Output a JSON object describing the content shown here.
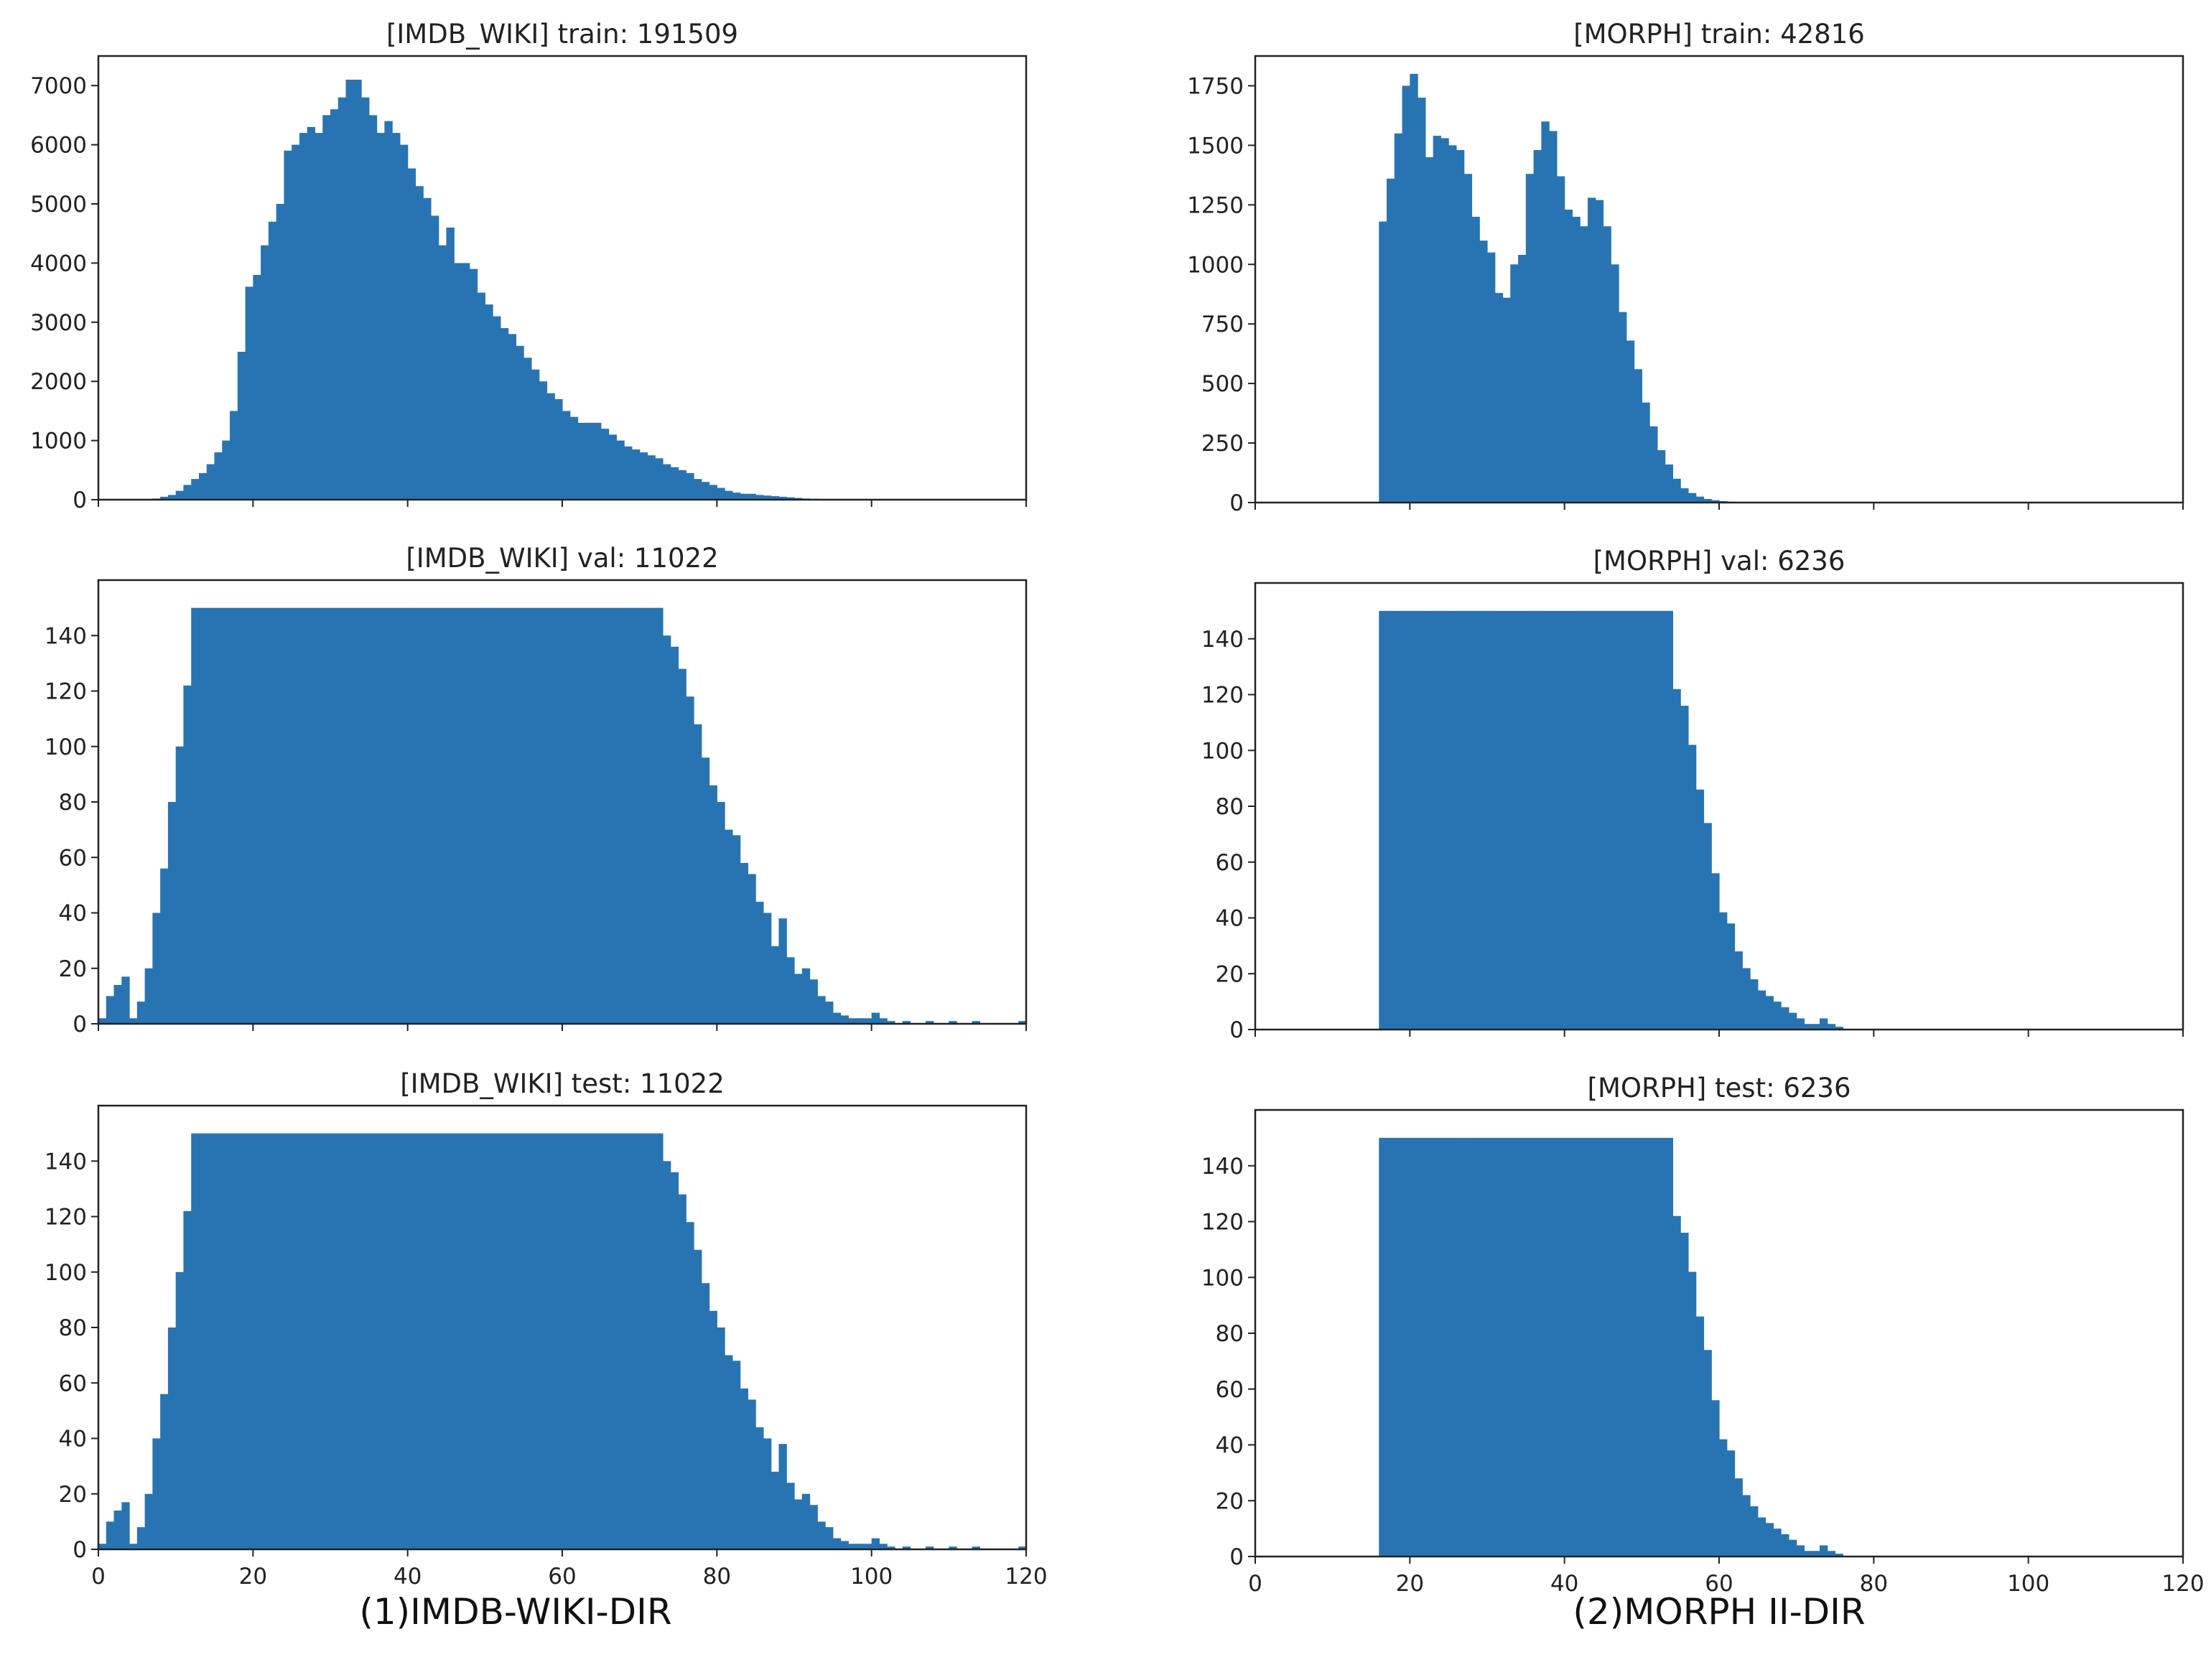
{
  "colors": {
    "bar": "#2874b2",
    "axis": "#222222",
    "background": "#ffffff",
    "text": "#222222"
  },
  "captions": [
    "(1)IMDB-WIKI-DIR",
    "(2)MORPH II-DIR"
  ],
  "chart_data": [
    {
      "type": "bar",
      "title": "[IMDB_WIKI] train: 191509",
      "xlabel": "",
      "ylabel": "",
      "xlim": [
        0,
        120
      ],
      "ylim": [
        0,
        7500
      ],
      "xticks": [
        0,
        20,
        40,
        60,
        80,
        100,
        120
      ],
      "show_xticklabels": false,
      "yticks": [
        0,
        1000,
        2000,
        3000,
        4000,
        5000,
        6000,
        7000
      ],
      "bin_start": 0,
      "bin_width": 1,
      "values": [
        0,
        0,
        0,
        0,
        0,
        0,
        10,
        20,
        50,
        80,
        150,
        250,
        350,
        450,
        600,
        800,
        1000,
        1500,
        2500,
        3600,
        3800,
        4300,
        4700,
        5000,
        5900,
        6000,
        6200,
        6300,
        6200,
        6500,
        6600,
        6800,
        7100,
        7100,
        6800,
        6500,
        6200,
        6400,
        6200,
        6000,
        5600,
        5300,
        5100,
        4800,
        4300,
        4600,
        4000,
        4000,
        3900,
        3500,
        3300,
        3100,
        2900,
        2800,
        2600,
        2400,
        2200,
        2000,
        1800,
        1700,
        1500,
        1400,
        1300,
        1300,
        1300,
        1200,
        1100,
        1000,
        900,
        850,
        800,
        750,
        700,
        600,
        550,
        500,
        450,
        350,
        300,
        250,
        200,
        150,
        120,
        100,
        100,
        80,
        70,
        60,
        50,
        40,
        30,
        20,
        15,
        10,
        8,
        5,
        4,
        3,
        2,
        1,
        0,
        0,
        0,
        0,
        0,
        0,
        0,
        0,
        0,
        0,
        0,
        0,
        0,
        0,
        0,
        0,
        0,
        0,
        0,
        0
      ]
    },
    {
      "type": "bar",
      "title": "[MORPH] train: 42816",
      "xlabel": "",
      "ylabel": "",
      "xlim": [
        0,
        120
      ],
      "ylim": [
        0,
        1875
      ],
      "xticks": [
        0,
        20,
        40,
        60,
        80,
        100,
        120
      ],
      "show_xticklabels": false,
      "yticks": [
        0,
        250,
        500,
        750,
        1000,
        1250,
        1500,
        1750
      ],
      "bin_start": 16,
      "bin_width": 1,
      "values": [
        1180,
        1360,
        1550,
        1750,
        1800,
        1700,
        1450,
        1540,
        1530,
        1500,
        1480,
        1380,
        1200,
        1100,
        1050,
        880,
        860,
        1000,
        1040,
        1380,
        1480,
        1600,
        1560,
        1370,
        1230,
        1200,
        1160,
        1280,
        1270,
        1160,
        1000,
        800,
        680,
        560,
        420,
        320,
        220,
        160,
        100,
        60,
        40,
        25,
        15,
        10,
        6,
        4,
        2,
        1
      ]
    },
    {
      "type": "bar",
      "title": "[IMDB_WIKI] val: 11022",
      "xlabel": "",
      "ylabel": "",
      "xlim": [
        0,
        120
      ],
      "ylim": [
        0,
        160
      ],
      "xticks": [
        0,
        20,
        40,
        60,
        80,
        100,
        120
      ],
      "show_xticklabels": false,
      "yticks": [
        0,
        20,
        40,
        60,
        80,
        100,
        120,
        140
      ],
      "bin_start": 0,
      "bin_width": 1,
      "values": [
        2,
        10,
        14,
        17,
        2,
        8,
        20,
        40,
        56,
        80,
        100,
        122,
        150,
        150,
        150,
        150,
        150,
        150,
        150,
        150,
        150,
        150,
        150,
        150,
        150,
        150,
        150,
        150,
        150,
        150,
        150,
        150,
        150,
        150,
        150,
        150,
        150,
        150,
        150,
        150,
        150,
        150,
        150,
        150,
        150,
        150,
        150,
        150,
        150,
        150,
        150,
        150,
        150,
        150,
        150,
        150,
        150,
        150,
        150,
        150,
        150,
        150,
        150,
        150,
        150,
        150,
        150,
        150,
        150,
        150,
        150,
        150,
        150,
        140,
        136,
        128,
        118,
        108,
        96,
        86,
        80,
        70,
        68,
        58,
        54,
        44,
        40,
        28,
        38,
        24,
        18,
        20,
        16,
        10,
        8,
        4,
        3,
        2,
        2,
        2,
        4,
        2,
        1,
        0,
        1,
        0,
        0,
        1,
        0,
        0,
        1,
        0,
        0,
        1,
        0,
        0,
        0,
        0,
        0,
        1
      ]
    },
    {
      "type": "bar",
      "title": "[MORPH] val: 6236",
      "xlabel": "",
      "ylabel": "",
      "xlim": [
        0,
        120
      ],
      "ylim": [
        0,
        160
      ],
      "xticks": [
        0,
        20,
        40,
        60,
        80,
        100,
        120
      ],
      "show_xticklabels": false,
      "yticks": [
        0,
        20,
        40,
        60,
        80,
        100,
        120,
        140
      ],
      "bin_start": 16,
      "bin_width": 1,
      "values": [
        150,
        150,
        150,
        150,
        150,
        150,
        150,
        150,
        150,
        150,
        150,
        150,
        150,
        150,
        150,
        150,
        150,
        150,
        150,
        150,
        150,
        150,
        150,
        150,
        150,
        150,
        150,
        150,
        150,
        150,
        150,
        150,
        150,
        150,
        150,
        150,
        150,
        150,
        122,
        116,
        102,
        86,
        74,
        56,
        42,
        38,
        28,
        22,
        18,
        14,
        12,
        10,
        8,
        6,
        4,
        2,
        2,
        4,
        2,
        1
      ]
    },
    {
      "type": "bar",
      "title": "[IMDB_WIKI] test: 11022",
      "xlabel": "",
      "ylabel": "",
      "xlim": [
        0,
        120
      ],
      "ylim": [
        0,
        160
      ],
      "xticks": [
        0,
        20,
        40,
        60,
        80,
        100,
        120
      ],
      "show_xticklabels": true,
      "yticks": [
        0,
        20,
        40,
        60,
        80,
        100,
        120,
        140
      ],
      "bin_start": 0,
      "bin_width": 1,
      "values": [
        2,
        10,
        14,
        17,
        2,
        8,
        20,
        40,
        56,
        80,
        100,
        122,
        150,
        150,
        150,
        150,
        150,
        150,
        150,
        150,
        150,
        150,
        150,
        150,
        150,
        150,
        150,
        150,
        150,
        150,
        150,
        150,
        150,
        150,
        150,
        150,
        150,
        150,
        150,
        150,
        150,
        150,
        150,
        150,
        150,
        150,
        150,
        150,
        150,
        150,
        150,
        150,
        150,
        150,
        150,
        150,
        150,
        150,
        150,
        150,
        150,
        150,
        150,
        150,
        150,
        150,
        150,
        150,
        150,
        150,
        150,
        150,
        150,
        140,
        136,
        128,
        118,
        108,
        96,
        86,
        80,
        70,
        68,
        58,
        54,
        44,
        40,
        28,
        38,
        24,
        18,
        20,
        16,
        10,
        8,
        4,
        3,
        2,
        2,
        2,
        4,
        2,
        1,
        0,
        1,
        0,
        0,
        1,
        0,
        0,
        1,
        0,
        0,
        1,
        0,
        0,
        0,
        0,
        0,
        1
      ]
    },
    {
      "type": "bar",
      "title": "[MORPH] test: 6236",
      "xlabel": "",
      "ylabel": "",
      "xlim": [
        0,
        120
      ],
      "ylim": [
        0,
        160
      ],
      "xticks": [
        0,
        20,
        40,
        60,
        80,
        100,
        120
      ],
      "show_xticklabels": true,
      "yticks": [
        0,
        20,
        40,
        60,
        80,
        100,
        120,
        140
      ],
      "bin_start": 16,
      "bin_width": 1,
      "values": [
        150,
        150,
        150,
        150,
        150,
        150,
        150,
        150,
        150,
        150,
        150,
        150,
        150,
        150,
        150,
        150,
        150,
        150,
        150,
        150,
        150,
        150,
        150,
        150,
        150,
        150,
        150,
        150,
        150,
        150,
        150,
        150,
        150,
        150,
        150,
        150,
        150,
        150,
        122,
        116,
        102,
        86,
        74,
        56,
        42,
        38,
        28,
        22,
        18,
        14,
        12,
        10,
        8,
        6,
        4,
        2,
        2,
        4,
        2,
        1
      ]
    }
  ]
}
